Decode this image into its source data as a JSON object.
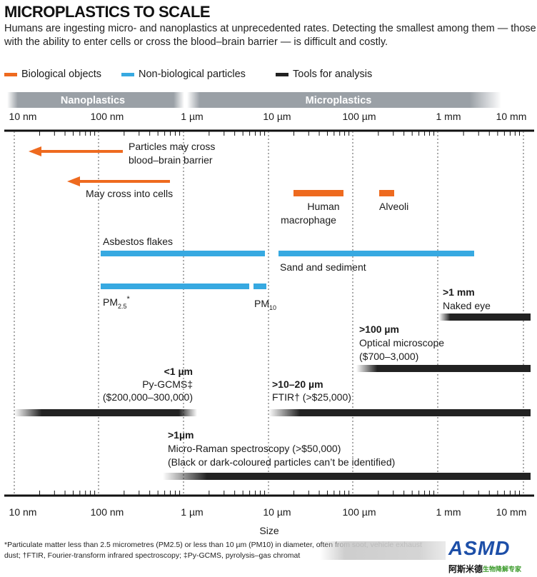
{
  "title": "MICROPLASTICS TO SCALE",
  "subtitle": "Humans are ingesting micro- and nanoplastics at unprecedented rates. Detecting the smallest among them — those with the ability to enter cells or cross the blood–brain barrier — is difficult and costly.",
  "legend": [
    {
      "label": "Biological objects",
      "color": "#ee6a1f"
    },
    {
      "label": "Non-biological particles",
      "color": "#37a9e1"
    },
    {
      "label": "Tools for analysis",
      "color": "#222222"
    }
  ],
  "bands": {
    "nano": "Nanoplastics",
    "micro": "Microplastics"
  },
  "axis": {
    "scale": "log",
    "unit": "m",
    "ticks": [
      {
        "label": "10 nm",
        "value": 1e-08
      },
      {
        "label": "100 nm",
        "value": 1e-07
      },
      {
        "label": "1 µm",
        "value": 1e-06
      },
      {
        "label": "10 µm",
        "value": 1e-05
      },
      {
        "label": "100 µm",
        "value": 0.0001
      },
      {
        "label": "1 mm",
        "value": 0.001
      },
      {
        "label": "10 mm",
        "value": 0.01
      }
    ],
    "xlabel": "Size"
  },
  "items": {
    "bbb": {
      "line1": "Particles may cross",
      "line2": "blood–brain barrier"
    },
    "cells": {
      "label": "May cross into cells"
    },
    "macrophage": {
      "line1": "Human",
      "line2": "macrophage"
    },
    "alveoli": {
      "label": "Alveoli"
    },
    "asbestos": {
      "label": "Asbestos flakes"
    },
    "sand": {
      "label": "Sand and sediment"
    },
    "pm25": {
      "label": "PM",
      "sub": "2.5",
      "sup": "*"
    },
    "pm10": {
      "label": "PM",
      "sub": "10"
    },
    "naked_eye": {
      "size": ">1 mm",
      "label": "Naked eye"
    },
    "optical": {
      "size": ">100 µm",
      "label": "Optical microscope",
      "cost": "($700–3,000)"
    },
    "pygcms": {
      "size": "<1 µm",
      "label": "Py-GCMS‡",
      "cost": "($200,000–300,000)"
    },
    "ftir": {
      "size": ">10–20 µm",
      "label": "FTIR† (>$25,000)"
    },
    "raman": {
      "size": ">1µm",
      "line1": "Micro-Raman spectroscopy (>$50,000)",
      "line2": "(Black or dark-coloured particles can’t be identified)"
    }
  },
  "footnote": {
    "line1": "*Particulate matter less than 2.5 micrometres (PM2.5) or less than 10 µm (PM10) in diameter, often from soot, vehicle exhaust",
    "line2": "dust; †FTIR, Fourier-transform infrared spectroscopy; ‡Py-GCMS, pyrolysis–gas chromat"
  },
  "watermark": {
    "logo": "ASMD",
    "chinese": "阿斯米德",
    "sub": "生物降解专家"
  }
}
